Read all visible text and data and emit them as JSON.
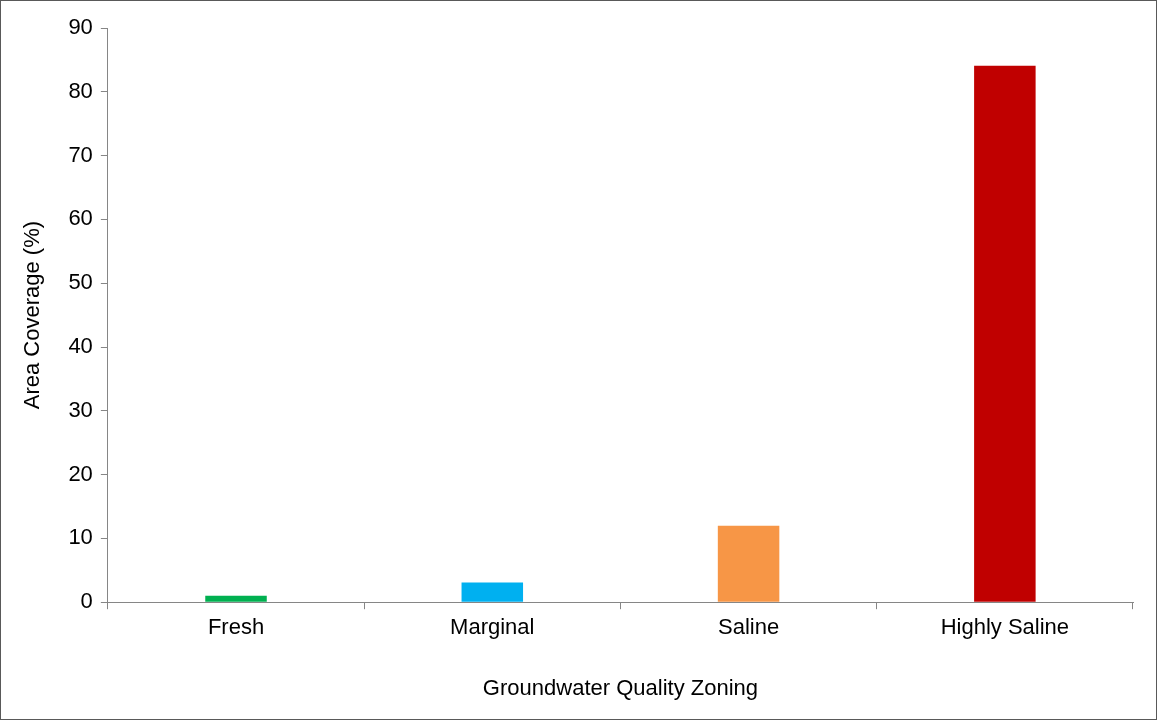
{
  "chart_data": {
    "type": "bar",
    "xlabel": "Groundwater Quality Zoning",
    "ylabel": "Area Coverage (%)",
    "categories": [
      "Fresh",
      "Marginal",
      "Saline",
      "Highly Saline"
    ],
    "values": [
      1,
      3.1,
      12,
      84.1
    ],
    "colors": [
      "#00b050",
      "#00b0f0",
      "#f79646",
      "#c00000"
    ],
    "ylim": [
      0,
      90
    ],
    "yticks": [
      0,
      10,
      20,
      30,
      40,
      50,
      60,
      70,
      80,
      90
    ]
  }
}
